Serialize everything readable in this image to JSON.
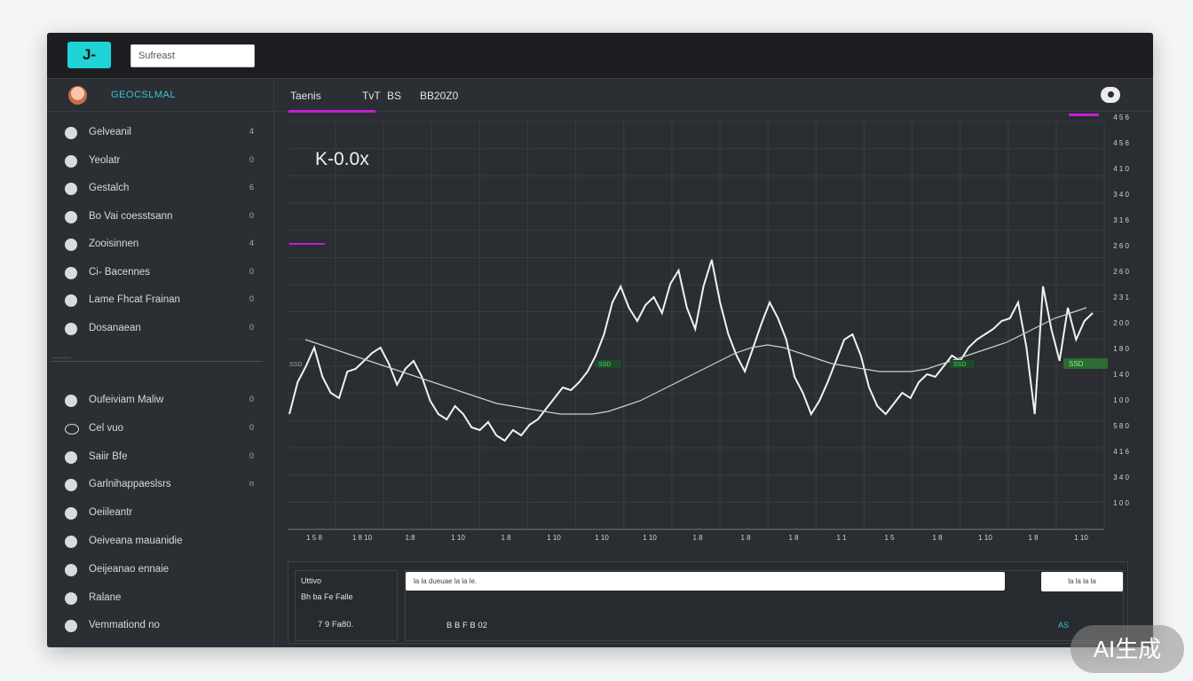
{
  "topbar": {
    "logo_text": "J-",
    "search_value": "Sufreast"
  },
  "sidebar": {
    "user_name": "GEOCSLMAL",
    "items": [
      {
        "label": "Gelveanil",
        "badge": "4",
        "icon": "compass-icon"
      },
      {
        "label": "Yeolatr",
        "badge": "0",
        "icon": "dashboard-icon"
      },
      {
        "label": "Gestalch",
        "badge": "6",
        "icon": "chart-icon"
      },
      {
        "label": "Bo Vai coesstsann",
        "badge": "0",
        "icon": "list-icon"
      },
      {
        "label": "Zooisinnen",
        "badge": "4",
        "icon": "user-icon"
      },
      {
        "label": "Ci- Bacennes",
        "badge": "0",
        "icon": "folder-icon"
      },
      {
        "label": "Lame Fhcat Frainan",
        "badge": "0",
        "icon": "settings-icon"
      },
      {
        "label": "Dosanaean",
        "badge": "0",
        "icon": "wallet-icon"
      }
    ],
    "divider_label": "-------------",
    "items2": [
      {
        "label": "Oufeiviam Maliw",
        "badge": "0",
        "icon": "info-icon"
      },
      {
        "label": "Cel vuo",
        "badge": "0",
        "icon": "chat-icon"
      },
      {
        "label": "Saiir Bfe",
        "badge": "0",
        "icon": "bell-icon"
      },
      {
        "label": "Garlnihappaeslsrs",
        "badge": "n",
        "icon": "globe-icon"
      },
      {
        "label": "Oeiileantr",
        "badge": "",
        "icon": "star-icon"
      },
      {
        "label": "Oeiveana mauanidie",
        "badge": "",
        "icon": "help-icon"
      },
      {
        "label": "Oeijeanao ennaie",
        "badge": "",
        "icon": "lock-icon"
      },
      {
        "label": "Ralane",
        "badge": "",
        "icon": "power-icon"
      },
      {
        "label": "Vemmationd no",
        "badge": "",
        "icon": "gear-icon"
      }
    ]
  },
  "tabs": [
    {
      "label": "Taenis"
    },
    {
      "label": "TvT"
    },
    {
      "label": "BS"
    },
    {
      "label": "BB20Z0"
    }
  ],
  "chart_data": {
    "type": "line",
    "title": "K-0.0x",
    "x_ticks": [
      "1 5 8",
      "1 8 10",
      "1:8",
      "1 10",
      "1 8",
      "1 10",
      "1 10",
      "1 10",
      "1 8",
      "1 8",
      "1 8",
      "1 1",
      "1 5",
      "1 8",
      "1 10",
      "1 8",
      "1 10"
    ],
    "y_ticks": [
      "4 5 6",
      "4 5 6",
      "4 1 0",
      "3 4 0",
      "3 1 6",
      "2 6 0",
      "2 6 0",
      "2 3 1",
      "2 0 0",
      "1 8 0",
      "1 4 0",
      "1 0 0",
      "5 8 0",
      "4 1 6",
      "3 4 0",
      "1 0 0"
    ],
    "y_range": [
      0,
      100
    ],
    "annotations": [
      "K-0.0x",
      "SSD",
      "SSD",
      "SSD",
      "SSD"
    ],
    "series": [
      {
        "values": [
          30,
          42,
          48,
          55,
          44,
          38,
          36,
          46,
          47,
          50,
          53,
          55,
          49,
          41,
          47,
          50,
          44,
          35,
          30,
          28,
          33,
          30,
          25,
          24,
          27,
          22,
          20,
          24,
          22,
          26,
          28,
          32,
          36,
          40,
          39,
          42,
          46,
          52,
          60,
          72,
          78,
          70,
          65,
          71,
          74,
          68,
          79,
          84,
          70,
          62,
          78,
          88,
          72,
          60,
          52,
          46,
          55,
          64,
          72,
          66,
          58,
          44,
          38,
          30,
          35,
          42,
          50,
          58,
          60,
          52,
          40,
          33,
          30,
          34,
          38,
          36,
          42,
          45,
          44,
          48,
          52,
          50,
          55,
          58,
          60,
          62,
          65,
          66,
          72,
          55,
          30,
          78,
          62,
          50,
          70,
          58,
          65,
          68
        ]
      },
      {
        "values": [
          58,
          56,
          54,
          52,
          50,
          48,
          46,
          44,
          42,
          40,
          38,
          36,
          34,
          33,
          32,
          31,
          30,
          30,
          30,
          31,
          33,
          35,
          38,
          41,
          44,
          47,
          50,
          53,
          55,
          56,
          55,
          53,
          51,
          49,
          48,
          47,
          46,
          46,
          46,
          47,
          49,
          51,
          53,
          55,
          57,
          60,
          63,
          66,
          68,
          70
        ]
      }
    ]
  },
  "panel": {
    "title": "Uttivo",
    "subtitle": "Bh ba Fe Falle",
    "value": "7 9 Fa80.",
    "input_value": "la la dueuae la la le.",
    "button_label": "la la la la",
    "mid_value": "B B F B 02",
    "tag": "AS"
  },
  "watermark": "AI生成"
}
